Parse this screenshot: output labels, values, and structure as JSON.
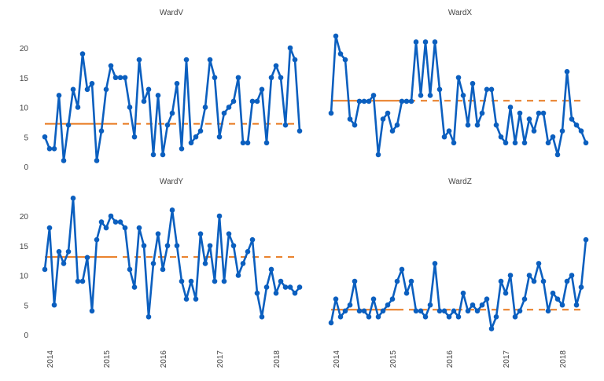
{
  "chart_data": [
    {
      "type": "line",
      "title": "WardV",
      "baseline": 7.2,
      "ylim": [
        0,
        23
      ],
      "yticks": [
        0,
        5,
        10,
        15,
        20
      ],
      "values": [
        5,
        3,
        3,
        12,
        1,
        7,
        13,
        10,
        19,
        13,
        14,
        1,
        6,
        13,
        17,
        15,
        15,
        15,
        10,
        5,
        18,
        11,
        13,
        2,
        12,
        2,
        7,
        9,
        14,
        3,
        18,
        4,
        5,
        6,
        10,
        18,
        15,
        5,
        9,
        10,
        11,
        15,
        4,
        4,
        11,
        11,
        13,
        4,
        15,
        17,
        15,
        7,
        20,
        18,
        6
      ]
    },
    {
      "type": "line",
      "title": "WardX",
      "baseline": 11.1,
      "ylim": [
        0,
        23
      ],
      "yticks": [
        0,
        5,
        10,
        15,
        20
      ],
      "values": [
        9,
        22,
        19,
        18,
        8,
        7,
        11,
        11,
        11,
        12,
        2,
        8,
        9,
        6,
        7,
        11,
        11,
        11,
        21,
        12,
        21,
        12,
        21,
        13,
        5,
        6,
        4,
        15,
        12,
        7,
        14,
        7,
        9,
        13,
        13,
        7,
        5,
        4,
        10,
        4,
        9,
        4,
        8,
        6,
        9,
        9,
        4,
        5,
        2,
        6,
        16,
        8,
        7,
        6,
        4
      ]
    },
    {
      "type": "line",
      "title": "WardY",
      "baseline": 13.1,
      "ylim": [
        0,
        23
      ],
      "yticks": [
        0,
        5,
        10,
        15,
        20
      ],
      "values": [
        11,
        18,
        5,
        14,
        12,
        14,
        23,
        9,
        9,
        13,
        4,
        16,
        19,
        18,
        20,
        19,
        19,
        18,
        11,
        8,
        18,
        15,
        3,
        12,
        17,
        11,
        15,
        21,
        15,
        9,
        6,
        9,
        6,
        17,
        12,
        15,
        9,
        20,
        9,
        17,
        15,
        10,
        12,
        14,
        16,
        7,
        3,
        8,
        11,
        7,
        9,
        8,
        8,
        7,
        8
      ]
    },
    {
      "type": "line",
      "title": "WardZ",
      "baseline": 4.2,
      "ylim": [
        0,
        23
      ],
      "yticks": [
        0,
        5,
        10,
        15,
        20
      ],
      "values": [
        2,
        6,
        3,
        4,
        5,
        9,
        4,
        4,
        3,
        6,
        3,
        4,
        5,
        6,
        9,
        11,
        7,
        9,
        4,
        4,
        3,
        5,
        12,
        4,
        4,
        3,
        4,
        3,
        7,
        4,
        5,
        4,
        5,
        6,
        1,
        3,
        9,
        7,
        10,
        3,
        4,
        6,
        10,
        9,
        12,
        9,
        4,
        7,
        6,
        5,
        9,
        10,
        5,
        8,
        16
      ]
    }
  ],
  "x_start": "2014-01",
  "x_frequency": "monthly",
  "xticks": [
    "2014",
    "2015",
    "2016",
    "2017",
    "2018"
  ],
  "colors": {
    "series": "#0b5fbf",
    "baseline": "#e8791e"
  }
}
